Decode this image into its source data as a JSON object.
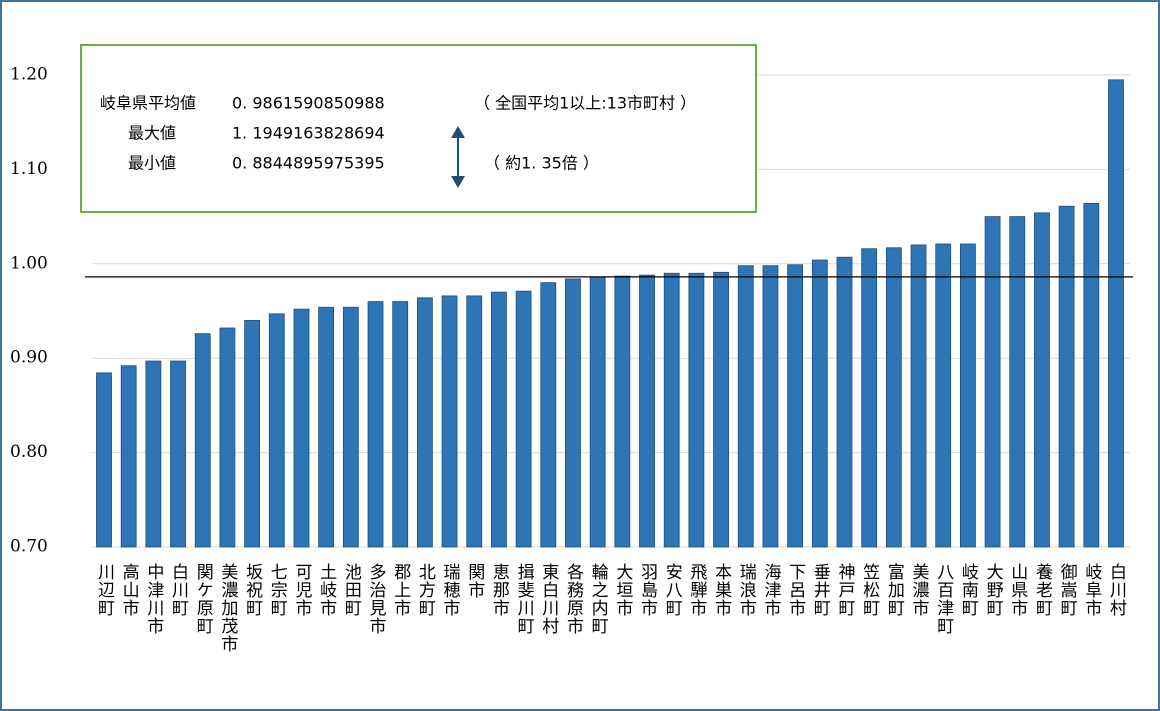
{
  "chart_data": {
    "type": "bar",
    "categories": [
      "川辺町",
      "高山市",
      "中津川市",
      "白川町",
      "関ケ原町",
      "美濃加茂市",
      "坂祝町",
      "七宗町",
      "可児市",
      "土岐市",
      "池田町",
      "多治見市",
      "郡上市",
      "北方町",
      "瑞穂市",
      "関市",
      "恵那市",
      "揖斐川町",
      "東白川村",
      "各務原市",
      "輪之内町",
      "大垣市",
      "羽島市",
      "安八町",
      "飛騨市",
      "本巣市",
      "瑞浪市",
      "海津市",
      "下呂市",
      "垂井町",
      "神戸町",
      "笠松町",
      "富加町",
      "美濃市",
      "八百津町",
      "岐南町",
      "大野町",
      "山県市",
      "養老町",
      "御嵩町",
      "岐阜市",
      "白川村"
    ],
    "values": [
      0.8844895975395,
      0.892,
      0.897,
      0.897,
      0.926,
      0.932,
      0.94,
      0.947,
      0.952,
      0.954,
      0.954,
      0.96,
      0.96,
      0.964,
      0.966,
      0.966,
      0.97,
      0.971,
      0.98,
      0.984,
      0.986,
      0.987,
      0.988,
      0.99,
      0.99,
      0.991,
      0.998,
      0.998,
      0.999,
      1.004,
      1.007,
      1.016,
      1.017,
      1.02,
      1.021,
      1.021,
      1.05,
      1.05,
      1.054,
      1.061,
      1.064,
      1.1949163828694
    ],
    "color": "#2e75b6",
    "ylim": [
      0.7,
      1.2
    ],
    "yticks": [
      {
        "value": 0.7,
        "label": "0.70"
      },
      {
        "value": 0.8,
        "label": "0.80"
      },
      {
        "value": 0.9,
        "label": "0.90"
      },
      {
        "value": 1.0,
        "label": "1.00"
      },
      {
        "value": 1.1,
        "label": "1.10"
      },
      {
        "value": 1.2,
        "label": "1.20"
      }
    ],
    "grid": true,
    "annotation": {
      "average_name": "岐阜県平均値",
      "average": {
        "value": 0.9861590850988,
        "label": "0. 9861590850988"
      },
      "national_note": "（ 全国平均1以上:13市町村 ）",
      "max_name": "最大値",
      "max": {
        "value": 1.1949163828694,
        "label": "1. 1949163828694"
      },
      "min_name": "最小値",
      "min": {
        "value": 0.8844895975395,
        "label": "0. 8844895975395"
      },
      "ratio_note": "（ 約1. 35倍 ）"
    }
  }
}
